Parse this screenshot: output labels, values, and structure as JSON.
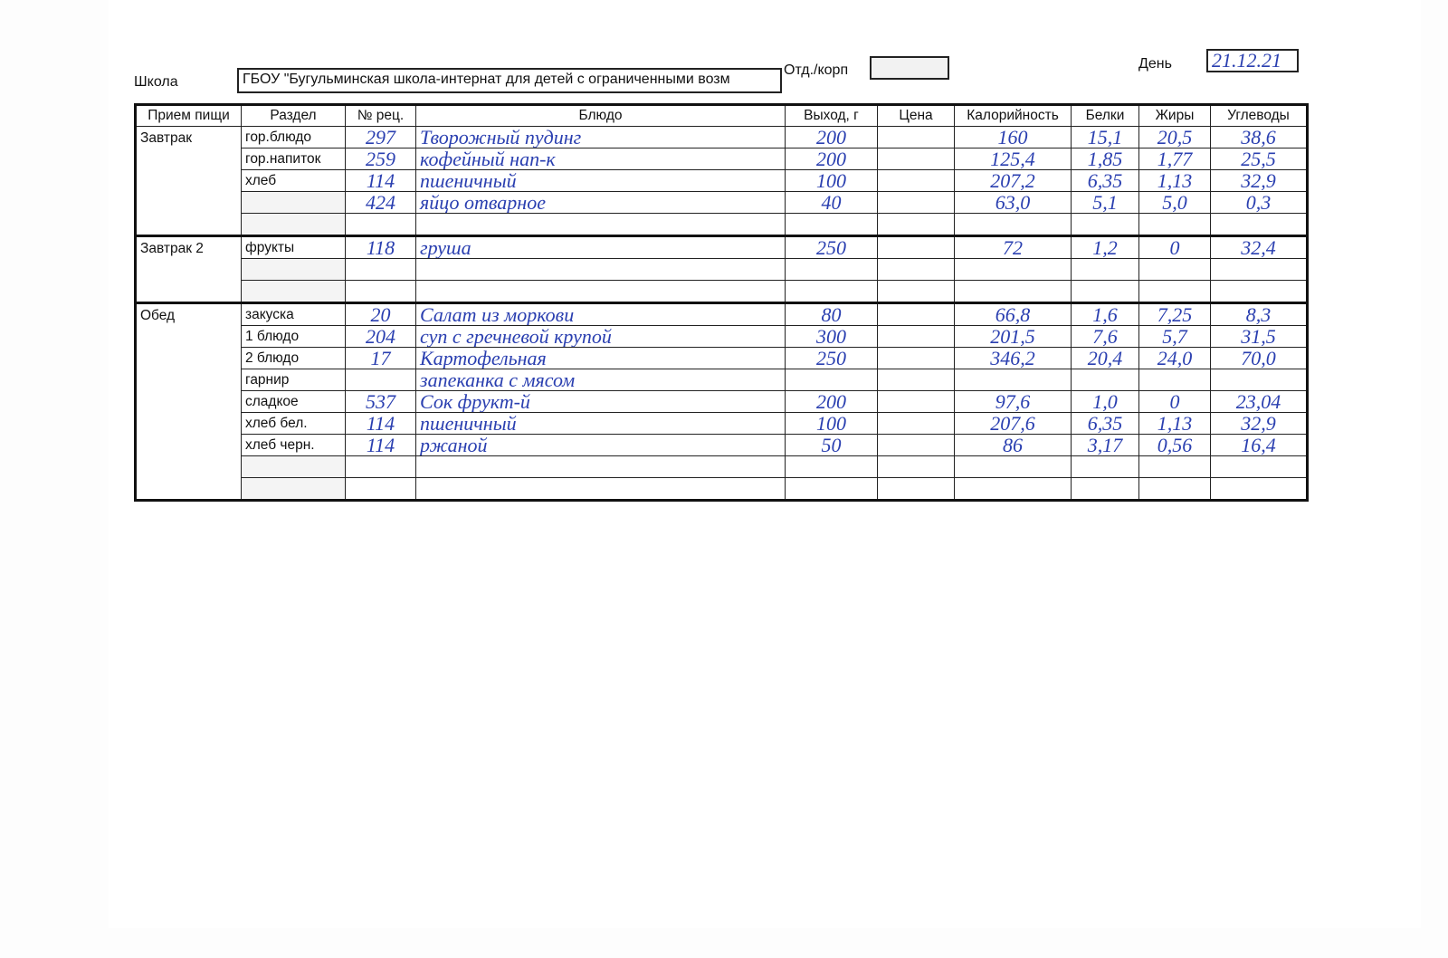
{
  "header": {
    "school_label": "Школа",
    "school_value": "ГБОУ \"Бугульминская школа-интернат для детей с ограниченными возм",
    "dept_label": "Отд./корп",
    "dept_value": "",
    "day_label": "День",
    "day_value": "21.12.21"
  },
  "columns": [
    "Прием пищи",
    "Раздел",
    "№ рец.",
    "Блюдо",
    "Выход, г",
    "Цена",
    "Калорийность",
    "Белки",
    "Жиры",
    "Углеводы"
  ],
  "meals": [
    {
      "name": "Завтрак",
      "rows": [
        {
          "section": "гор.блюдо",
          "rec": "297",
          "dish": "Творожный пудинг",
          "out": "200",
          "price": "",
          "kcal": "160",
          "prot": "15,1",
          "fat": "20,5",
          "carb": "38,6"
        },
        {
          "section": "гор.напиток",
          "rec": "259",
          "dish": "кофейный нап-к",
          "out": "200",
          "price": "",
          "kcal": "125,4",
          "prot": "1,85",
          "fat": "1,77",
          "carb": "25,5"
        },
        {
          "section": "хлеб",
          "rec": "114",
          "dish": "пшеничный",
          "out": "100",
          "price": "",
          "kcal": "207,2",
          "prot": "6,35",
          "fat": "1,13",
          "carb": "32,9"
        },
        {
          "section": "",
          "rec": "424",
          "dish": "яйцо отварное",
          "out": "40",
          "price": "",
          "kcal": "63,0",
          "prot": "5,1",
          "fat": "5,0",
          "carb": "0,3"
        },
        {
          "section": "",
          "rec": "",
          "dish": "",
          "out": "",
          "price": "",
          "kcal": "",
          "prot": "",
          "fat": "",
          "carb": ""
        }
      ]
    },
    {
      "name": "Завтрак 2",
      "rows": [
        {
          "section": "фрукты",
          "rec": "118",
          "dish": "груша",
          "out": "250",
          "price": "",
          "kcal": "72",
          "prot": "1,2",
          "fat": "0",
          "carb": "32,4"
        },
        {
          "section": "",
          "rec": "",
          "dish": "",
          "out": "",
          "price": "",
          "kcal": "",
          "prot": "",
          "fat": "",
          "carb": ""
        },
        {
          "section": "",
          "rec": "",
          "dish": "",
          "out": "",
          "price": "",
          "kcal": "",
          "prot": "",
          "fat": "",
          "carb": ""
        }
      ]
    },
    {
      "name": "Обед",
      "rows": [
        {
          "section": "закуска",
          "rec": "20",
          "dish": "Салат из моркови",
          "out": "80",
          "price": "",
          "kcal": "66,8",
          "prot": "1,6",
          "fat": "7,25",
          "carb": "8,3"
        },
        {
          "section": "1 блюдо",
          "rec": "204",
          "dish": "суп с гречневой крупой",
          "out": "300",
          "price": "",
          "kcal": "201,5",
          "prot": "7,6",
          "fat": "5,7",
          "carb": "31,5"
        },
        {
          "section": "2 блюдо",
          "rec": "17",
          "dish": "Картофельная",
          "out": "250",
          "price": "",
          "kcal": "346,2",
          "prot": "20,4",
          "fat": "24,0",
          "carb": "70,0"
        },
        {
          "section": "гарнир",
          "rec": "",
          "dish": "запеканка с мясом",
          "out": "",
          "price": "",
          "kcal": "",
          "prot": "",
          "fat": "",
          "carb": ""
        },
        {
          "section": "сладкое",
          "rec": "537",
          "dish": "Сок фрукт-й",
          "out": "200",
          "price": "",
          "kcal": "97,6",
          "prot": "1,0",
          "fat": "0",
          "carb": "23,04"
        },
        {
          "section": "хлеб бел.",
          "rec": "114",
          "dish": "пшеничный",
          "out": "100",
          "price": "",
          "kcal": "207,6",
          "prot": "6,35",
          "fat": "1,13",
          "carb": "32,9"
        },
        {
          "section": "хлеб черн.",
          "rec": "114",
          "dish": "ржаной",
          "out": "50",
          "price": "",
          "kcal": "86",
          "prot": "3,17",
          "fat": "0,56",
          "carb": "16,4"
        },
        {
          "section": "",
          "rec": "",
          "dish": "",
          "out": "",
          "price": "",
          "kcal": "",
          "prot": "",
          "fat": "",
          "carb": ""
        },
        {
          "section": "",
          "rec": "",
          "dish": "",
          "out": "",
          "price": "",
          "kcal": "",
          "prot": "",
          "fat": "",
          "carb": ""
        }
      ]
    }
  ],
  "colors": {
    "ink": "#2a3fb0",
    "lines": "#111111"
  }
}
